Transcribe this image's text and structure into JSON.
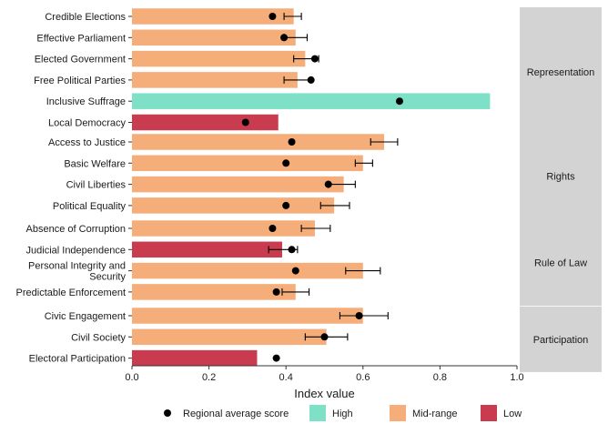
{
  "chart_data": {
    "type": "bar",
    "orientation": "horizontal",
    "xlabel": "Index value",
    "xlim": [
      0,
      1
    ],
    "xticks": [
      0.0,
      0.2,
      0.4,
      0.6,
      0.8,
      1.0
    ],
    "xtick_labels": [
      "0.0",
      "0.2",
      "0.4",
      "0.6",
      "0.8",
      "1.0"
    ],
    "grid": false,
    "legend_position": "bottom",
    "colors": {
      "High": "#7fe0c8",
      "Mid-range": "#f5ad79",
      "Low": "#c93c50",
      "panel_strip": "#d3d3d3",
      "marker": "#000000"
    },
    "legend": [
      {
        "label": "Regional average score",
        "kind": "point"
      },
      {
        "label": "High",
        "kind": "fill"
      },
      {
        "label": "Mid-range",
        "kind": "fill"
      },
      {
        "label": "Low",
        "kind": "fill"
      }
    ],
    "facets": [
      {
        "name": "Representation",
        "rows": [
          {
            "label": "Credible Elections",
            "value": 0.42,
            "category": "Mid-range",
            "regional_avg": 0.365,
            "ci": [
              0.395,
              0.44
            ]
          },
          {
            "label": "Effective Parliament",
            "value": 0.425,
            "category": "Mid-range",
            "regional_avg": 0.395,
            "ci": [
              0.395,
              0.455
            ]
          },
          {
            "label": "Elected Government",
            "value": 0.45,
            "category": "Mid-range",
            "regional_avg": 0.475,
            "ci": [
              0.42,
              0.485
            ]
          },
          {
            "label": "Free Political Parties",
            "value": 0.43,
            "category": "Mid-range",
            "regional_avg": 0.465,
            "ci": [
              0.395,
              0.465
            ]
          },
          {
            "label": "Inclusive Suffrage",
            "value": 0.93,
            "category": "High",
            "regional_avg": 0.695,
            "ci": null
          },
          {
            "label": "Local Democracy",
            "value": 0.38,
            "category": "Low",
            "regional_avg": 0.295,
            "ci": null
          }
        ]
      },
      {
        "name": "Rights",
        "rows": [
          {
            "label": "Access to Justice",
            "value": 0.655,
            "category": "Mid-range",
            "regional_avg": 0.415,
            "ci": [
              0.62,
              0.69
            ]
          },
          {
            "label": "Basic Welfare",
            "value": 0.6,
            "category": "Mid-range",
            "regional_avg": 0.4,
            "ci": [
              0.58,
              0.625
            ]
          },
          {
            "label": "Civil Liberties",
            "value": 0.55,
            "category": "Mid-range",
            "regional_avg": 0.51,
            "ci": [
              0.51,
              0.58
            ]
          },
          {
            "label": "Political Equality",
            "value": 0.525,
            "category": "Mid-range",
            "regional_avg": 0.4,
            "ci": [
              0.49,
              0.565
            ]
          }
        ]
      },
      {
        "name": "Rule of Law",
        "rows": [
          {
            "label": "Absence of Corruption",
            "value": 0.475,
            "category": "Mid-range",
            "regional_avg": 0.365,
            "ci": [
              0.44,
              0.515
            ]
          },
          {
            "label": "Judicial Independence",
            "value": 0.39,
            "category": "Low",
            "regional_avg": 0.415,
            "ci": [
              0.355,
              0.43
            ]
          },
          {
            "label": "Personal Integrity and Security",
            "value": 0.6,
            "category": "Mid-range",
            "regional_avg": 0.425,
            "ci": [
              0.555,
              0.645
            ]
          },
          {
            "label": "Predictable Enforcement",
            "value": 0.425,
            "category": "Mid-range",
            "regional_avg": 0.375,
            "ci": [
              0.39,
              0.46
            ]
          }
        ]
      },
      {
        "name": "Participation",
        "rows": [
          {
            "label": "Civic Engagement",
            "value": 0.6,
            "category": "Mid-range",
            "regional_avg": 0.59,
            "ci": [
              0.54,
              0.665
            ]
          },
          {
            "label": "Civil Society",
            "value": 0.505,
            "category": "Mid-range",
            "regional_avg": 0.5,
            "ci": [
              0.45,
              0.56
            ]
          },
          {
            "label": "Electoral Participation",
            "value": 0.325,
            "category": "Low",
            "regional_avg": 0.375,
            "ci": null
          }
        ]
      }
    ]
  }
}
